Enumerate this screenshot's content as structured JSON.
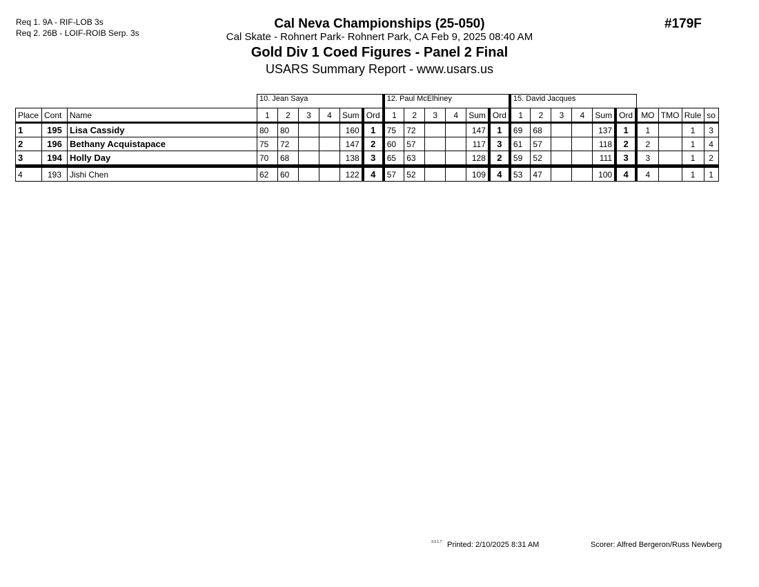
{
  "requirements": [
    "Req  1.  9A - RIF-LOB 3s",
    "Req  2.  26B - LOIF-ROIB Serp. 3s"
  ],
  "event_title": "Cal Neva Championships (25-050)",
  "location": "Cal Skate - Rohnert Park- Rohnert Park, CA  Feb 9, 2025  08:40 AM",
  "event_number": "#179F",
  "division": "Gold Div 1 Coed Figures - Panel 2 Final",
  "report": "USARS Summary Report - www.usars.us",
  "judges": [
    "10.  Jean Saya",
    "12.  Paul  McElhiney",
    "15.  David Jacques"
  ],
  "headers": {
    "place": "Place",
    "cont": "Cont",
    "name": "Name",
    "fig": [
      "1",
      "2",
      "3",
      "4"
    ],
    "sum": "Sum",
    "ord": "Ord",
    "mo": "MO",
    "tmo": "TMO",
    "rule": "Rule",
    "so": "so"
  },
  "rows": [
    {
      "place": "1",
      "cont": "195",
      "name": "Lisa Cassidy",
      "judges": [
        {
          "s": [
            "80",
            "80",
            "",
            ""
          ],
          "sum": "160",
          "ord": "1"
        },
        {
          "s": [
            "75",
            "72",
            "",
            ""
          ],
          "sum": "147",
          "ord": "1"
        },
        {
          "s": [
            "69",
            "68",
            "",
            ""
          ],
          "sum": "137",
          "ord": "1"
        }
      ],
      "mo": "1",
      "tmo": "",
      "rule": "1",
      "so": "3"
    },
    {
      "place": "2",
      "cont": "196",
      "name": "Bethany Acquistapace",
      "judges": [
        {
          "s": [
            "75",
            "72",
            "",
            ""
          ],
          "sum": "147",
          "ord": "2"
        },
        {
          "s": [
            "60",
            "57",
            "",
            ""
          ],
          "sum": "117",
          "ord": "3"
        },
        {
          "s": [
            "61",
            "57",
            "",
            ""
          ],
          "sum": "118",
          "ord": "2"
        }
      ],
      "mo": "2",
      "tmo": "",
      "rule": "1",
      "so": "4"
    },
    {
      "place": "3",
      "cont": "194",
      "name": "Holly Day",
      "judges": [
        {
          "s": [
            "70",
            "68",
            "",
            ""
          ],
          "sum": "138",
          "ord": "3"
        },
        {
          "s": [
            "65",
            "63",
            "",
            ""
          ],
          "sum": "128",
          "ord": "2"
        },
        {
          "s": [
            "59",
            "52",
            "",
            ""
          ],
          "sum": "111",
          "ord": "3"
        }
      ],
      "mo": "3",
      "tmo": "",
      "rule": "1",
      "so": "2"
    },
    {
      "place": "4",
      "cont": "193",
      "name": "Jishi Chen",
      "judges": [
        {
          "s": [
            "62",
            "60",
            "",
            ""
          ],
          "sum": "122",
          "ord": "4"
        },
        {
          "s": [
            "57",
            "52",
            "",
            ""
          ],
          "sum": "109",
          "ord": "4"
        },
        {
          "s": [
            "53",
            "47",
            "",
            ""
          ],
          "sum": "100",
          "ord": "4"
        }
      ],
      "mo": "4",
      "tmo": "",
      "rule": "1",
      "so": "1"
    }
  ],
  "footer": {
    "version": "3.3.1.7",
    "printed": "Printed:  2/10/2025  8:31 AM",
    "scorer": "Scorer:   Alfred Bergeron/Russ Newberg"
  }
}
